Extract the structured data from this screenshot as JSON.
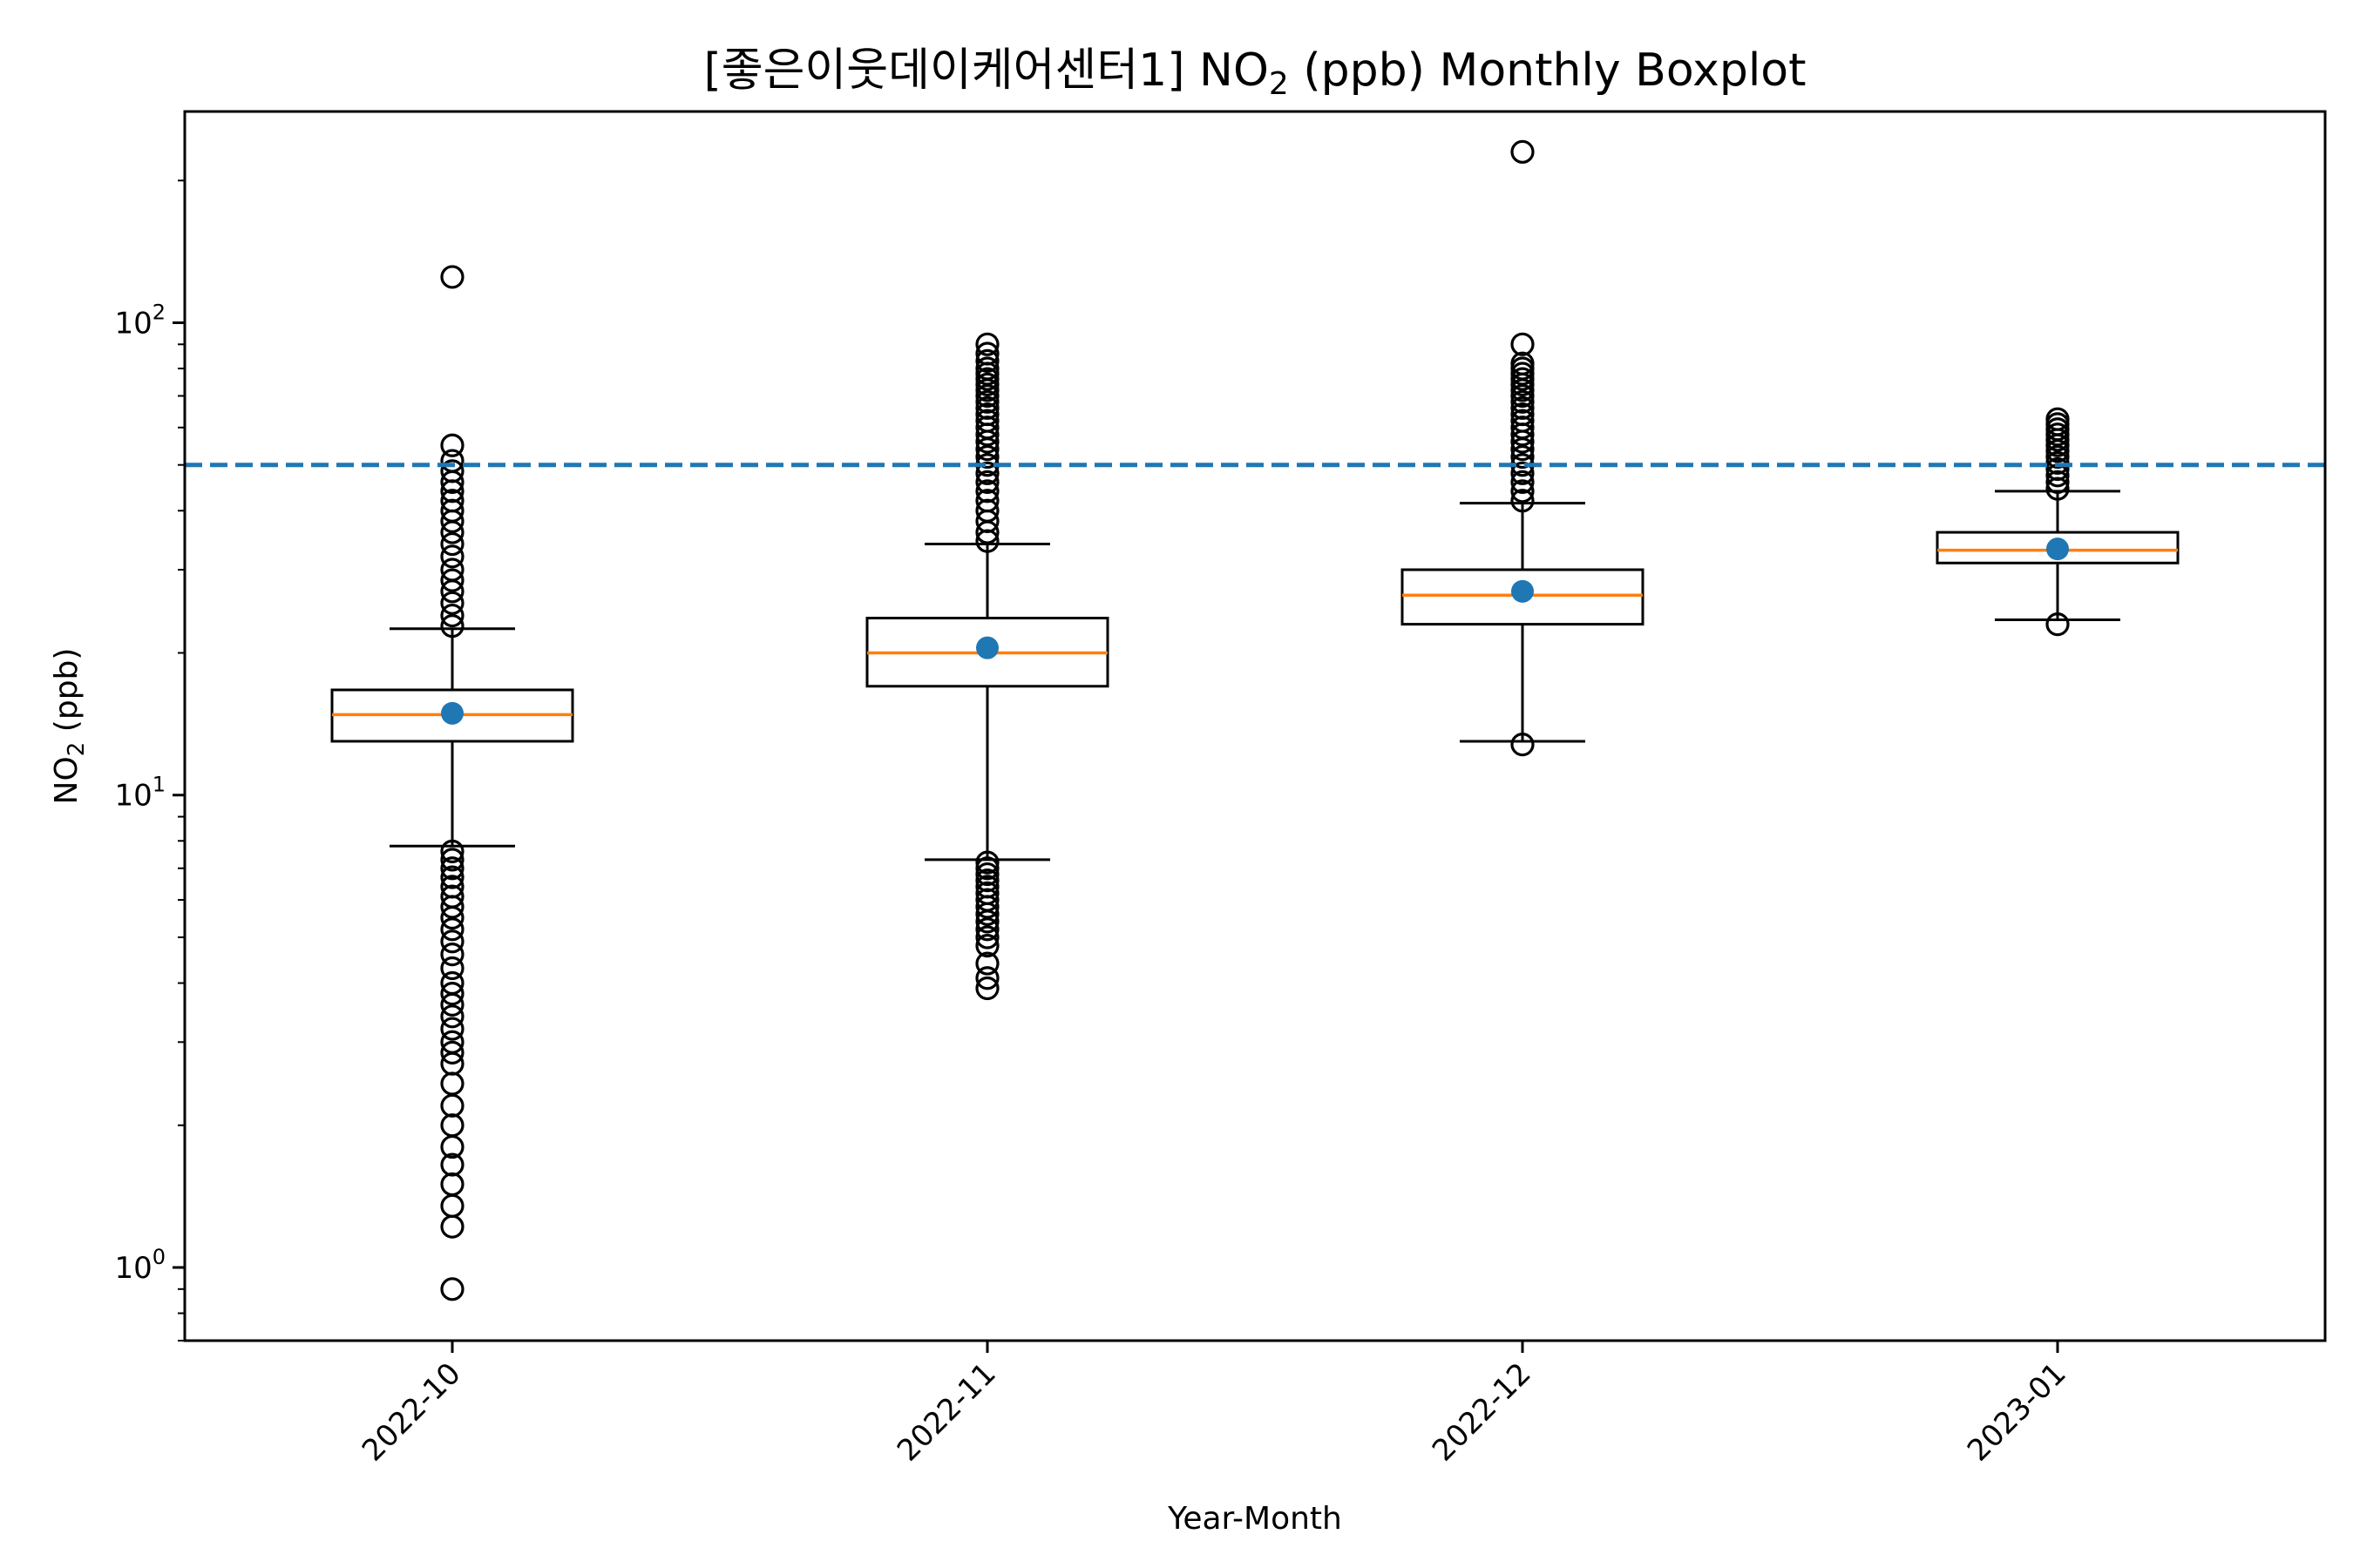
{
  "chart_data": {
    "type": "box",
    "title": "[좋은이웃데이케어센터1] NO₂ (ppb) Monthly Boxplot",
    "title_prefix": "[좋은이웃데이케어센터1] NO",
    "title_subscript": "2",
    "title_suffix": " (ppb) Monthly Boxplot",
    "xlabel": "Year-Month",
    "ylabel": "NO₂ (ppb)",
    "ylabel_prefix": "NO",
    "ylabel_subscript": "2",
    "ylabel_suffix": " (ppb)",
    "y_scale": "log",
    "ylim": [
      0.7,
      280
    ],
    "y_ticks": [
      {
        "value": 1,
        "base": "10",
        "exponent": "0"
      },
      {
        "value": 10,
        "base": "10",
        "exponent": "1"
      },
      {
        "value": 100,
        "base": "10",
        "exponent": "2"
      }
    ],
    "grid": false,
    "reference_line": {
      "y": 50,
      "style": "dashed",
      "color": "#1f77b4"
    },
    "colors": {
      "box": "#000000",
      "median": "#ff7f0e",
      "mean": "#1f77b4",
      "reference": "#1f77b4"
    },
    "categories": [
      "2022-10",
      "2022-11",
      "2022-12",
      "2023-01"
    ],
    "boxes": [
      {
        "category": "2022-10",
        "whisker_low": 7.8,
        "q1": 13.0,
        "median": 14.8,
        "q3": 16.7,
        "whisker_high": 22.5,
        "mean": 14.9,
        "outliers": [
          0.9,
          1.22,
          1.35,
          1.5,
          1.65,
          1.8,
          2.0,
          2.2,
          2.45,
          2.7,
          2.85,
          3.0,
          3.2,
          3.4,
          3.6,
          3.8,
          4.0,
          4.3,
          4.6,
          4.9,
          5.2,
          5.5,
          5.8,
          6.1,
          6.4,
          6.7,
          7.0,
          7.3,
          7.6,
          22.8,
          24.0,
          25.5,
          27.0,
          28.5,
          30.0,
          32.0,
          34.0,
          36.0,
          38.0,
          40.0,
          42.0,
          44.0,
          46.0,
          48.5,
          51.0,
          55.0,
          125.0
        ]
      },
      {
        "category": "2022-11",
        "whisker_low": 7.3,
        "q1": 17.0,
        "median": 20.0,
        "q3": 23.7,
        "whisker_high": 34.0,
        "mean": 20.5,
        "outliers": [
          3.9,
          4.1,
          4.4,
          4.8,
          5.0,
          5.2,
          5.4,
          5.6,
          5.8,
          6.0,
          6.2,
          6.4,
          6.6,
          6.8,
          7.0,
          7.2,
          34.5,
          36.0,
          38.0,
          40.0,
          42.0,
          44.0,
          46.0,
          48.0,
          50.0,
          52.0,
          54.0,
          56.0,
          58.0,
          60.0,
          62.0,
          64.0,
          66.0,
          68.0,
          70.0,
          72.0,
          74.0,
          76.0,
          78.0,
          80.0,
          83.0,
          86.0,
          90.0
        ]
      },
      {
        "category": "2022-12",
        "whisker_low": 13.0,
        "q1": 23.0,
        "median": 26.5,
        "q3": 30.0,
        "whisker_high": 41.5,
        "mean": 27.0,
        "outliers": [
          12.8,
          42.0,
          44.0,
          46.0,
          48.0,
          50.0,
          52.0,
          54.0,
          56.0,
          58.0,
          60.0,
          62.0,
          64.0,
          66.0,
          68.0,
          70.0,
          72.0,
          74.0,
          76.0,
          78.0,
          80.0,
          82.0,
          90.0,
          230.0
        ]
      },
      {
        "category": "2023-01",
        "whisker_low": 23.5,
        "q1": 31.0,
        "median": 33.0,
        "q3": 36.0,
        "whisker_high": 44.0,
        "mean": 33.2,
        "outliers": [
          23.0,
          44.5,
          46.0,
          47.5,
          49.0,
          50.5,
          52.0,
          53.5,
          55.0,
          56.5,
          58.0,
          59.5,
          61.0,
          62.5
        ]
      }
    ]
  }
}
